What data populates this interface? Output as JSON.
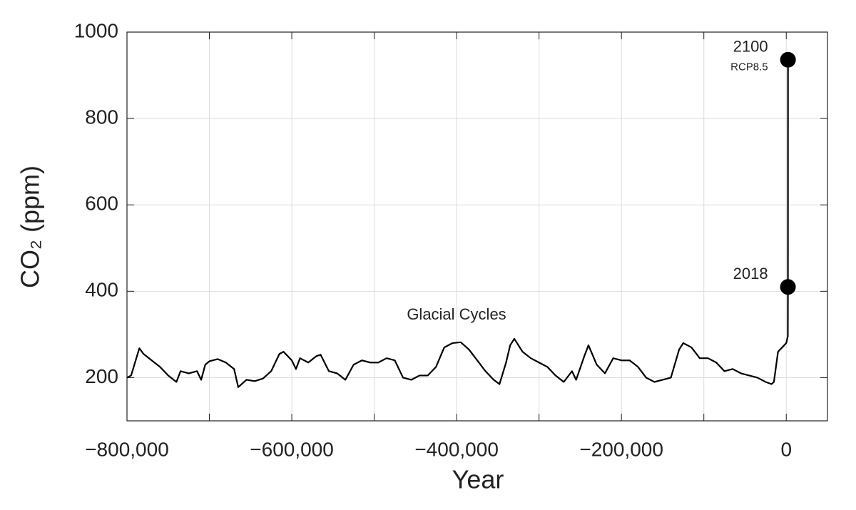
{
  "chart_data": {
    "type": "line",
    "xlabel": "Year",
    "ylabel": "CO₂ (ppm)",
    "annotations": [
      "Glacial Cycles"
    ],
    "scenario": "RCP8.5",
    "xlim": [
      -800000,
      50000
    ],
    "ylim": [
      100,
      1000
    ],
    "xticks": [
      {
        "value": -800000,
        "label": "−800,000"
      },
      {
        "value": -600000,
        "label": "−600,000"
      },
      {
        "value": -400000,
        "label": "−400,000"
      },
      {
        "value": -200000,
        "label": "−200,000"
      },
      0
    ],
    "xminor_ticks": [
      -700000,
      -500000,
      -300000,
      -100000
    ],
    "yticks": [
      200,
      400,
      600,
      800,
      1000
    ],
    "grid": true,
    "series": [
      {
        "name": "CO2",
        "color": "#000000",
        "x": [
          -800000,
          -795000,
          -785000,
          -780000,
          -770000,
          -760000,
          -750000,
          -740000,
          -735000,
          -725000,
          -715000,
          -710000,
          -705000,
          -700000,
          -690000,
          -680000,
          -670000,
          -665000,
          -655000,
          -645000,
          -635000,
          -625000,
          -615000,
          -610000,
          -600000,
          -595000,
          -590000,
          -580000,
          -570000,
          -565000,
          -555000,
          -545000,
          -535000,
          -525000,
          -515000,
          -505000,
          -495000,
          -485000,
          -475000,
          -465000,
          -455000,
          -445000,
          -435000,
          -425000,
          -415000,
          -405000,
          -395000,
          -385000,
          -375000,
          -365000,
          -355000,
          -348000,
          -340000,
          -335000,
          -330000,
          -320000,
          -310000,
          -300000,
          -290000,
          -280000,
          -270000,
          -260000,
          -255000,
          -245000,
          -240000,
          -230000,
          -220000,
          -210000,
          -200000,
          -190000,
          -180000,
          -170000,
          -160000,
          -150000,
          -140000,
          -130000,
          -125000,
          -115000,
          -105000,
          -95000,
          -85000,
          -75000,
          -65000,
          -55000,
          -45000,
          -35000,
          -25000,
          -18000,
          -15000,
          -10000,
          -5000,
          0,
          1900,
          2018,
          2100
        ],
        "values": [
          200,
          205,
          268,
          255,
          240,
          225,
          205,
          190,
          215,
          210,
          215,
          195,
          230,
          238,
          243,
          235,
          220,
          178,
          195,
          192,
          198,
          215,
          255,
          260,
          240,
          220,
          245,
          235,
          250,
          253,
          215,
          210,
          195,
          230,
          240,
          235,
          235,
          245,
          240,
          200,
          195,
          205,
          205,
          225,
          270,
          280,
          282,
          265,
          240,
          215,
          195,
          185,
          235,
          275,
          290,
          260,
          245,
          235,
          225,
          205,
          190,
          215,
          195,
          250,
          275,
          230,
          210,
          245,
          240,
          240,
          225,
          200,
          190,
          195,
          200,
          265,
          280,
          270,
          245,
          245,
          235,
          215,
          220,
          210,
          205,
          200,
          190,
          185,
          190,
          260,
          270,
          280,
          296,
          410,
          936
        ]
      }
    ],
    "markers": {
      "x": [
        2018,
        2100
      ],
      "values": [
        410,
        936
      ]
    }
  }
}
